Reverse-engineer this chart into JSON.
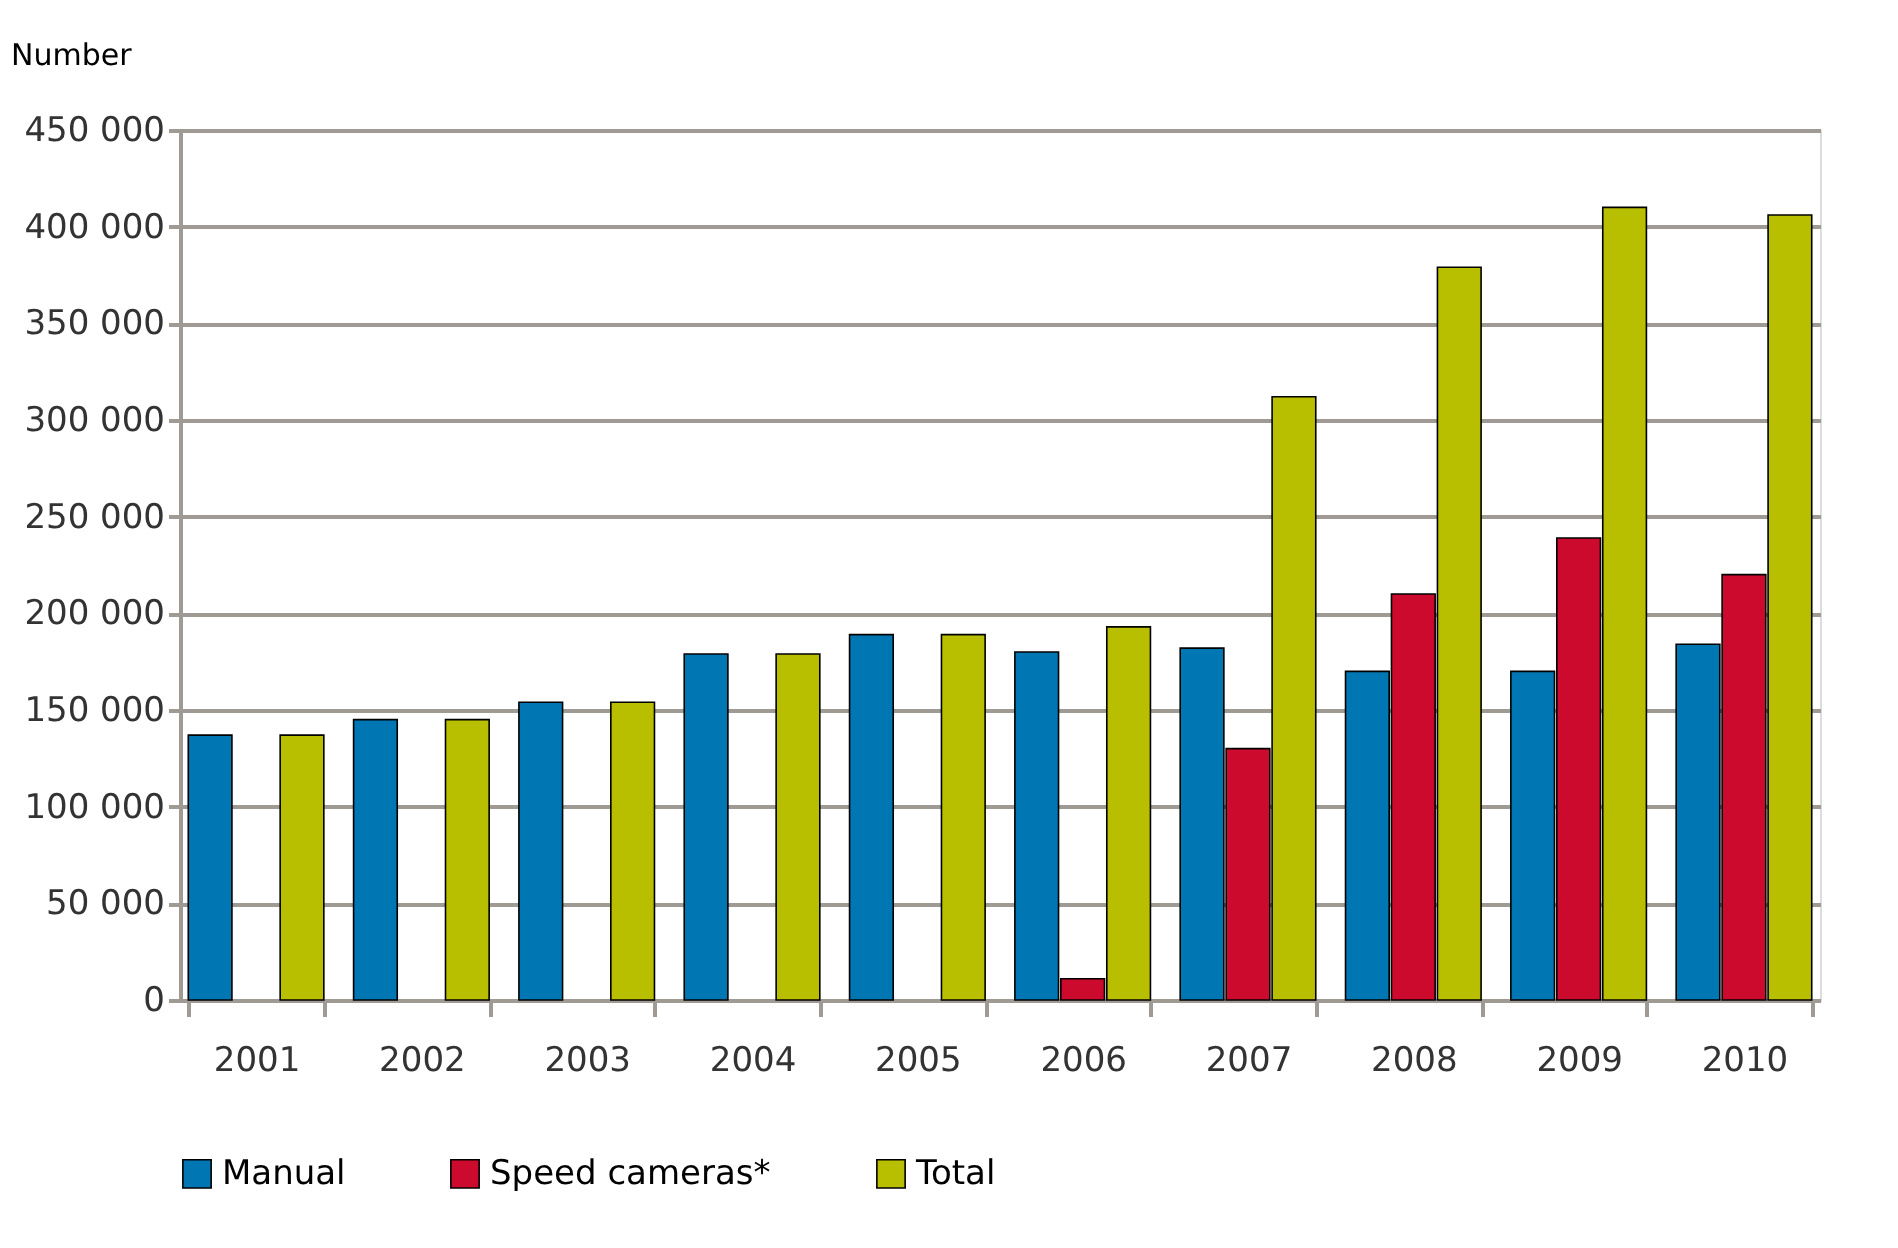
{
  "chart_data": {
    "type": "bar",
    "ylabel": "Number",
    "categories": [
      "2001",
      "2002",
      "2003",
      "2004",
      "2005",
      "2006",
      "2007",
      "2008",
      "2009",
      "2010"
    ],
    "series": [
      {
        "name": "Manual",
        "color": "#0077b3",
        "values": [
          137000,
          145000,
          154000,
          179000,
          189000,
          180000,
          182000,
          170000,
          170000,
          184000
        ]
      },
      {
        "name": "Speed cameras*",
        "color": "#cc0a2d",
        "values": [
          null,
          null,
          null,
          null,
          null,
          11000,
          130000,
          210000,
          239000,
          220000
        ]
      },
      {
        "name": "Total",
        "color": "#b8be00",
        "values": [
          137000,
          145000,
          154000,
          179000,
          189000,
          193000,
          312000,
          379000,
          410000,
          406000
        ]
      }
    ],
    "ylim": [
      0,
      450000
    ],
    "yticks": [
      0,
      {
        "value": 50000,
        "label": "50 000"
      },
      {
        "value": 100000,
        "label": "100 000"
      },
      {
        "value": 150000,
        "label": "150 000"
      },
      {
        "value": 200000,
        "label": "200 000"
      },
      {
        "value": 250000,
        "label": "250 000"
      },
      {
        "value": 300000,
        "label": "300 000"
      },
      {
        "value": 350000,
        "label": "350 000"
      },
      {
        "value": 400000,
        "label": "400 000"
      },
      {
        "value": 450000,
        "label": "450 000"
      }
    ],
    "grid": "y",
    "legend": "bottom"
  }
}
